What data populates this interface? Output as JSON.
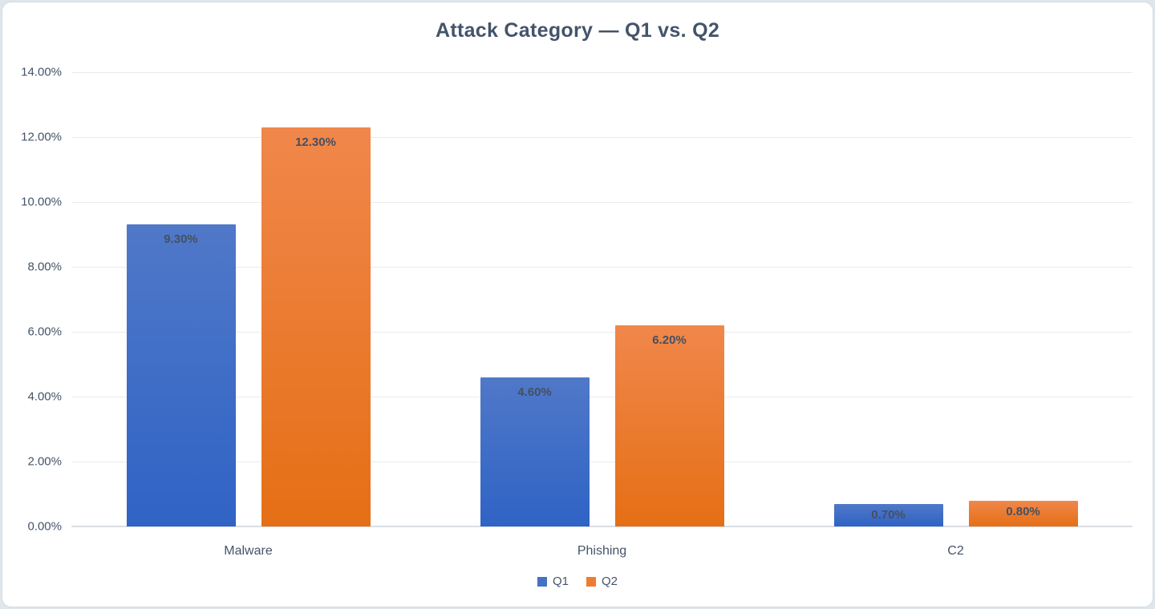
{
  "chart_data": {
    "type": "bar",
    "title": "Attack Category — Q1 vs. Q2",
    "categories": [
      "Malware",
      "Phishing",
      "C2"
    ],
    "series": [
      {
        "name": "Q1",
        "values": [
          9.3,
          4.6,
          0.7
        ],
        "labels": [
          "9.30%",
          "4.60%",
          "0.70%"
        ],
        "color": "#4472C4",
        "gradient_top": "#5078C8",
        "gradient_bottom": "#2F63C5"
      },
      {
        "name": "Q2",
        "values": [
          12.3,
          6.2,
          0.8
        ],
        "labels": [
          "12.30%",
          "6.20%",
          "0.80%"
        ],
        "color": "#ED7D31",
        "gradient_top": "#F0874B",
        "gradient_bottom": "#E56F15"
      }
    ],
    "y_axis": {
      "min": 0,
      "max": 14,
      "tick_step": 2,
      "tick_labels": [
        "0.00%",
        "2.00%",
        "4.00%",
        "6.00%",
        "8.00%",
        "10.00%",
        "12.00%",
        "14.00%"
      ]
    },
    "xlabel": "",
    "ylabel": "",
    "ylim": [
      0,
      14
    ],
    "grid": true,
    "legend_position": "bottom",
    "colors": {
      "title_text": "#44546A",
      "axis_text": "#44546A",
      "data_label_text": "#45505F",
      "gridline": "#E8EBEF",
      "axis_line": "#D9DEE4",
      "card_background": "#FFFFFF",
      "page_background": "#DFE6EC"
    }
  }
}
